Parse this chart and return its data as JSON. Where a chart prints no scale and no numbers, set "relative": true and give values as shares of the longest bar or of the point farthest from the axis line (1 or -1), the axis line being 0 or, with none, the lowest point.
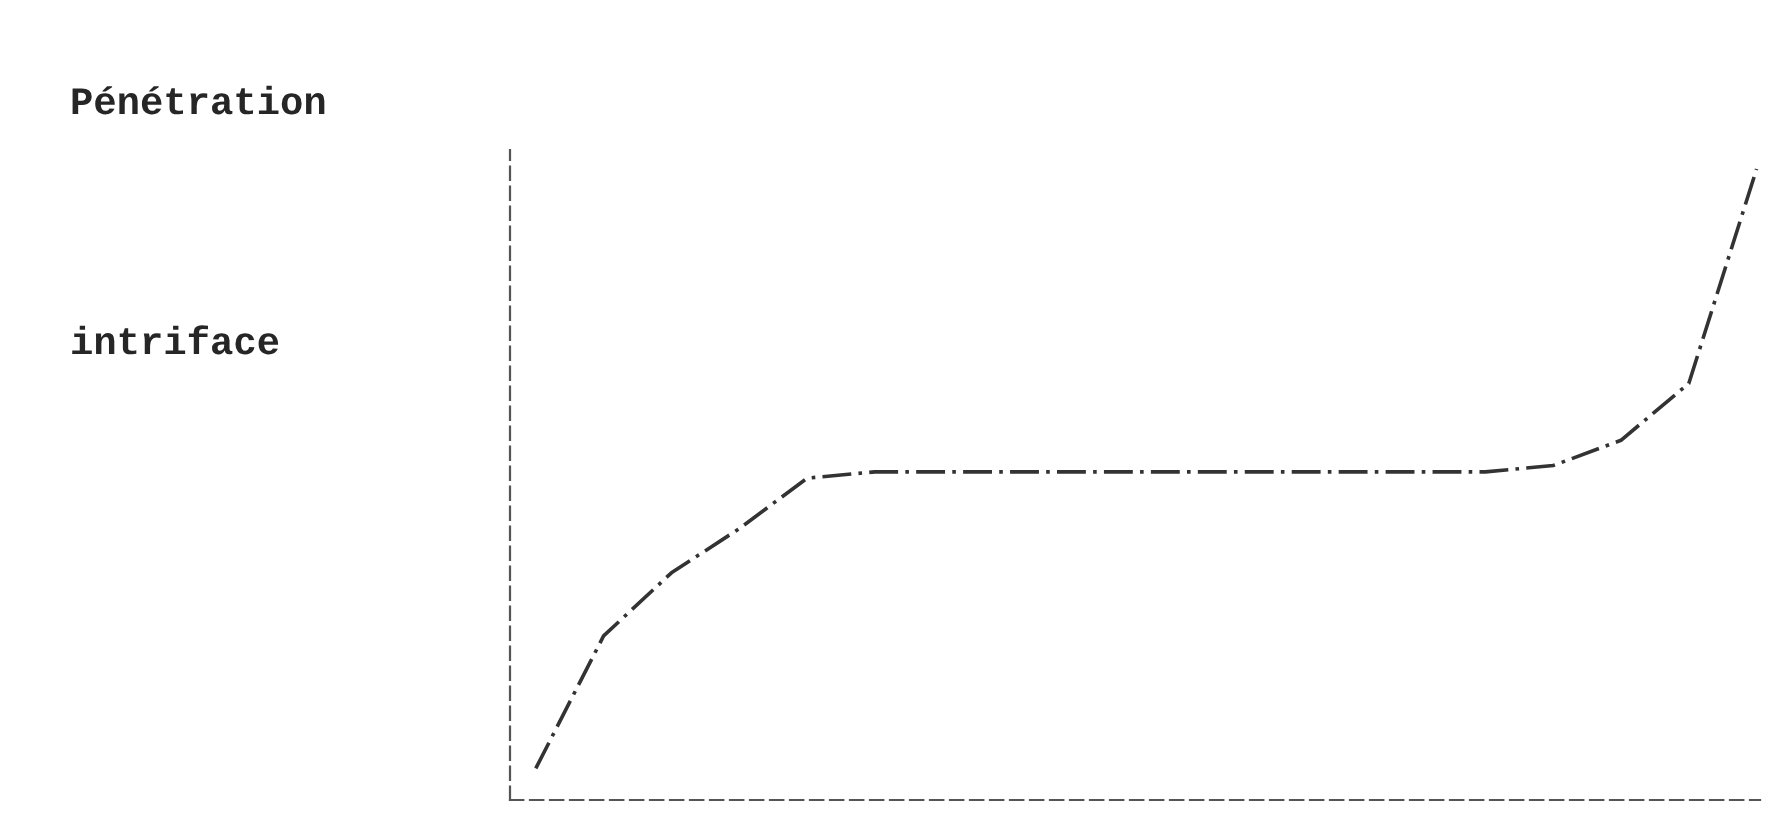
{
  "chart_data": {
    "type": "line",
    "title": "Pénétration",
    "annotations": [
      "intriface"
    ],
    "relative": true,
    "categories": [
      null,
      null,
      null,
      null,
      null,
      null,
      null,
      null,
      null,
      null,
      null,
      null,
      null,
      null,
      null,
      null,
      null,
      null,
      null
    ],
    "series": [
      {
        "color": "#333333",
        "values": [
          0.05,
          0.26,
          0.36,
          0.43,
          0.51,
          0.52,
          0.52,
          0.52,
          0.52,
          0.52,
          0.52,
          0.52,
          0.52,
          0.52,
          0.52,
          0.53,
          0.57,
          0.66,
          1.0
        ]
      }
    ],
    "line_style": "dashed",
    "marker": "none"
  }
}
